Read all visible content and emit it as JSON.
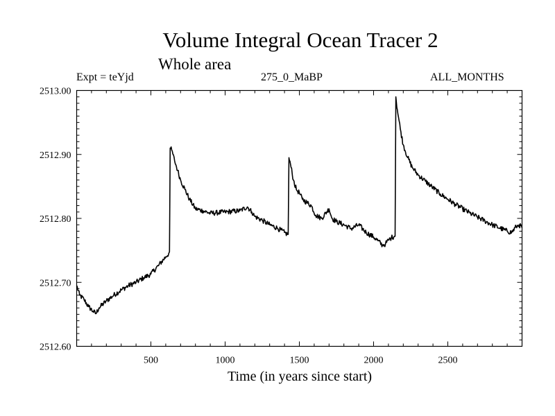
{
  "header": {
    "title": "Volume Integral Ocean Tracer 2",
    "subtitle": "Whole area",
    "expt": "Expt = teYjd",
    "period": "275_0_MaBP",
    "months": "ALL_MONTHS"
  },
  "chart_data": {
    "type": "line",
    "title": "Volume Integral Ocean Tracer 2",
    "subtitle": "Whole area",
    "xlabel": "Time (in years since start)",
    "ylabel": "",
    "xlim": [
      0,
      3000
    ],
    "ylim": [
      2512.6,
      2513.0
    ],
    "x_ticks": [
      500,
      1000,
      1500,
      2000,
      2500
    ],
    "x_tick_labels": [
      "500",
      "1000",
      "1500",
      "2000",
      "2500"
    ],
    "y_ticks": [
      2512.6,
      2512.7,
      2512.8,
      2512.9,
      2513.0
    ],
    "y_tick_labels": [
      "2512.60",
      "2512.70",
      "2512.80",
      "2512.90",
      "2513.00"
    ],
    "grid": false,
    "series": [
      {
        "name": "Ocean Tracer 2",
        "color": "#000000",
        "x": [
          0,
          20,
          50,
          80,
          110,
          130,
          150,
          200,
          250,
          300,
          350,
          400,
          450,
          500,
          550,
          600,
          620,
          625,
          630,
          640,
          660,
          680,
          700,
          730,
          760,
          800,
          850,
          900,
          1000,
          1100,
          1150,
          1180,
          1200,
          1250,
          1300,
          1350,
          1400,
          1420,
          1425,
          1430,
          1440,
          1460,
          1480,
          1500,
          1520,
          1550,
          1580,
          1610,
          1650,
          1700,
          1720,
          1750,
          1800,
          1850,
          1900,
          1950,
          2000,
          2030,
          2060,
          2080,
          2100,
          2120,
          2140,
          2145,
          2150,
          2160,
          2180,
          2200,
          2230,
          2260,
          2300,
          2350,
          2400,
          2450,
          2500,
          2550,
          2600,
          2650,
          2700,
          2750,
          2800,
          2850,
          2900,
          2930,
          2960,
          2980,
          3000
        ],
        "y": [
          2512.695,
          2512.68,
          2512.673,
          2512.662,
          2512.655,
          2512.651,
          2512.66,
          2512.671,
          2512.68,
          2512.688,
          2512.695,
          2512.7,
          2512.707,
          2512.713,
          2512.726,
          2512.74,
          2512.745,
          2512.748,
          2512.91,
          2512.907,
          2512.89,
          2512.875,
          2512.86,
          2512.845,
          2512.83,
          2512.815,
          2512.812,
          2512.808,
          2512.81,
          2512.812,
          2512.818,
          2512.81,
          2512.803,
          2512.797,
          2512.79,
          2512.785,
          2512.778,
          2512.775,
          2512.775,
          2512.895,
          2512.885,
          2512.86,
          2512.845,
          2512.84,
          2512.83,
          2512.825,
          2512.82,
          2512.805,
          2512.8,
          2512.815,
          2512.8,
          2512.795,
          2512.79,
          2512.784,
          2512.79,
          2512.778,
          2512.771,
          2512.765,
          2512.758,
          2512.76,
          2512.766,
          2512.77,
          2512.772,
          2512.772,
          2512.99,
          2512.97,
          2512.94,
          2512.915,
          2512.895,
          2512.88,
          2512.868,
          2512.858,
          2512.848,
          2512.838,
          2512.83,
          2512.822,
          2512.815,
          2512.808,
          2512.802,
          2512.796,
          2512.79,
          2512.785,
          2512.78,
          2512.778,
          2512.787,
          2512.79,
          2512.785
        ]
      }
    ]
  }
}
